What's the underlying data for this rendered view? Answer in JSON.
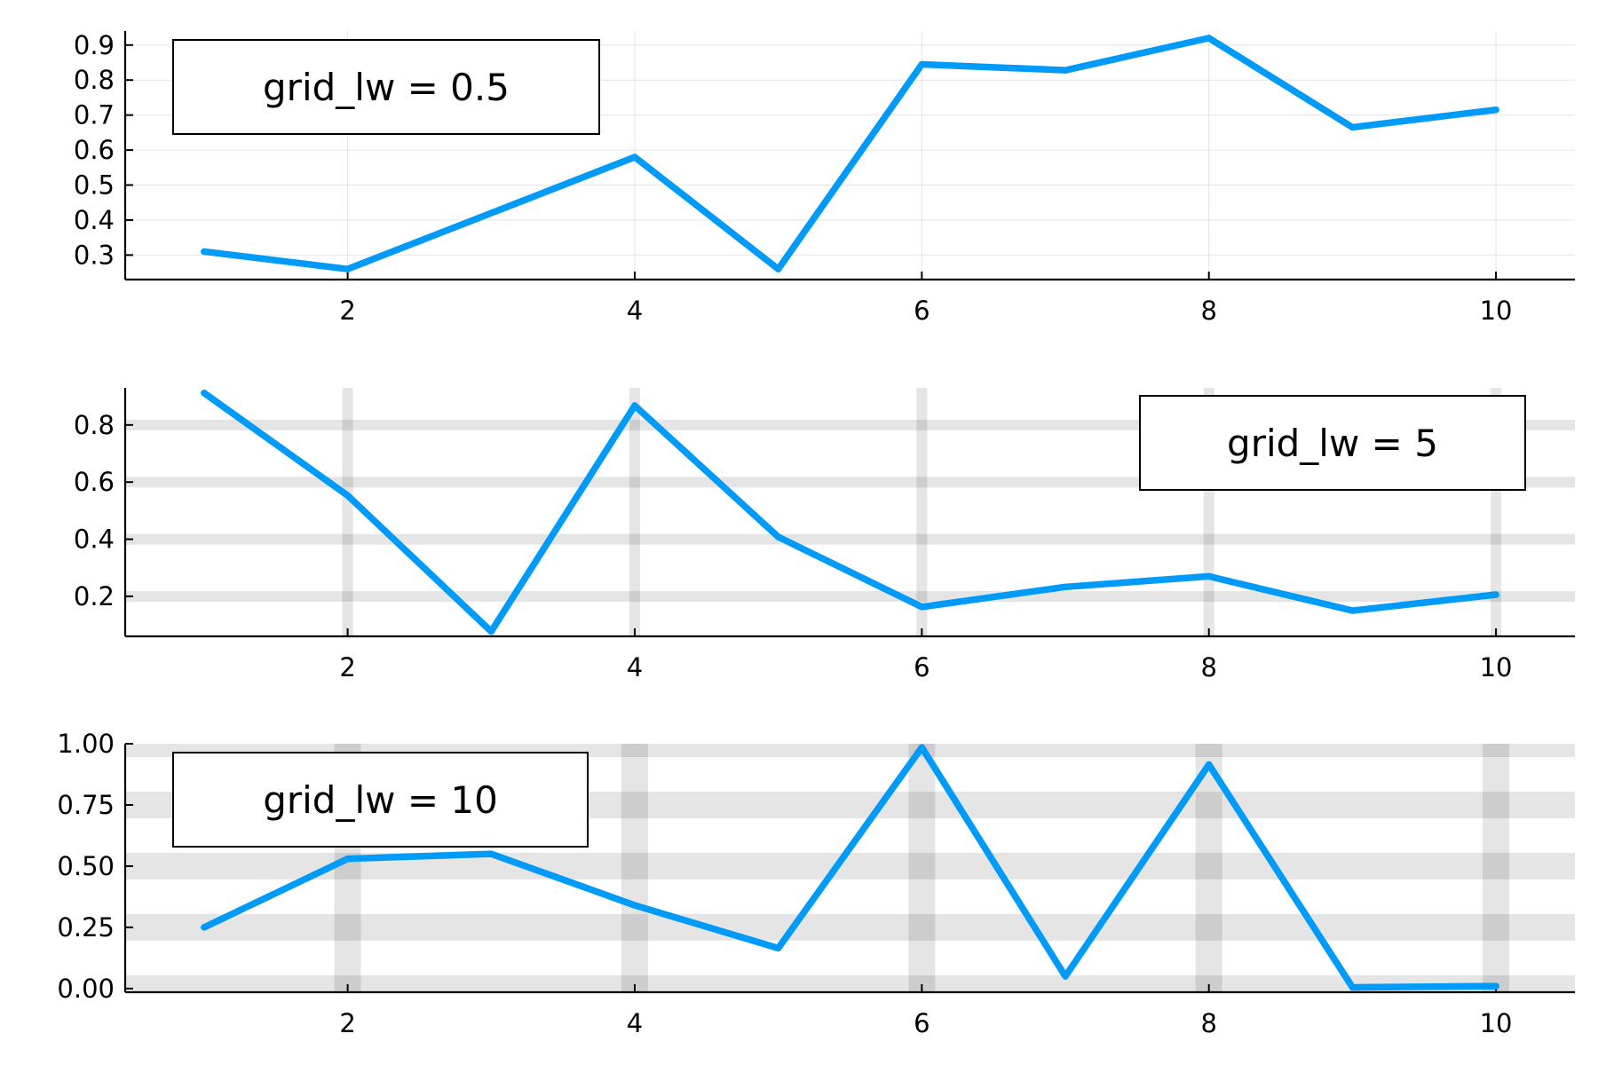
{
  "figure": {
    "line_color": "#009af9",
    "grid_color": "#000000",
    "axis_color": "#000000",
    "background": "#ffffff"
  },
  "chart_data": [
    {
      "type": "line",
      "legend": "grid_lw = 0.5",
      "legend_position": "top-left",
      "grid": true,
      "grid_linewidth": 0.5,
      "x": [
        1,
        2,
        3,
        4,
        5,
        6,
        7,
        8,
        9,
        10
      ],
      "series": [
        {
          "values": [
            0.31,
            0.26,
            0.42,
            0.58,
            0.26,
            0.845,
            0.828,
            0.92,
            0.665,
            0.715
          ]
        }
      ],
      "xlim": [
        0.45,
        10.55
      ],
      "ylim": [
        0.23,
        0.94
      ],
      "xticks": [
        2,
        4,
        6,
        8,
        10
      ],
      "xtick_labels": [
        "2",
        "4",
        "6",
        "8",
        "10"
      ],
      "yticks": [
        0.3,
        0.4,
        0.5,
        0.6,
        0.7,
        0.8,
        0.9
      ],
      "ytick_labels": [
        "0.3",
        "0.4",
        "0.5",
        "0.6",
        "0.7",
        "0.8",
        "0.9"
      ]
    },
    {
      "type": "line",
      "legend": "grid_lw = 5",
      "legend_position": "top-right",
      "grid": true,
      "grid_linewidth": 5,
      "x": [
        1,
        2,
        3,
        4,
        5,
        6,
        7,
        8,
        9,
        10
      ],
      "series": [
        {
          "values": [
            0.912,
            0.553,
            0.077,
            0.868,
            0.408,
            0.163,
            0.233,
            0.27,
            0.15,
            0.206
          ]
        }
      ],
      "xlim": [
        0.45,
        10.55
      ],
      "ylim": [
        0.06,
        0.93
      ],
      "xticks": [
        2,
        4,
        6,
        8,
        10
      ],
      "xtick_labels": [
        "2",
        "4",
        "6",
        "8",
        "10"
      ],
      "yticks": [
        0.2,
        0.4,
        0.6,
        0.8
      ],
      "ytick_labels": [
        "0.2",
        "0.4",
        "0.6",
        "0.8"
      ]
    },
    {
      "type": "line",
      "legend": "grid_lw = 10",
      "legend_position": "top-left",
      "grid": true,
      "grid_linewidth": 10,
      "x": [
        1,
        2,
        3,
        4,
        5,
        6,
        7,
        8,
        9,
        10
      ],
      "series": [
        {
          "values": [
            0.25,
            0.53,
            0.55,
            0.34,
            0.165,
            0.985,
            0.05,
            0.915,
            0.005,
            0.01
          ]
        }
      ],
      "xlim": [
        0.45,
        10.55
      ],
      "ylim": [
        -0.015,
        1.0
      ],
      "xticks": [
        2,
        4,
        6,
        8,
        10
      ],
      "xtick_labels": [
        "2",
        "4",
        "6",
        "8",
        "10"
      ],
      "yticks": [
        0.0,
        0.25,
        0.5,
        0.75,
        1.0
      ],
      "ytick_labels": [
        "0.00",
        "0.25",
        "0.50",
        "0.75",
        "1.00"
      ]
    }
  ]
}
